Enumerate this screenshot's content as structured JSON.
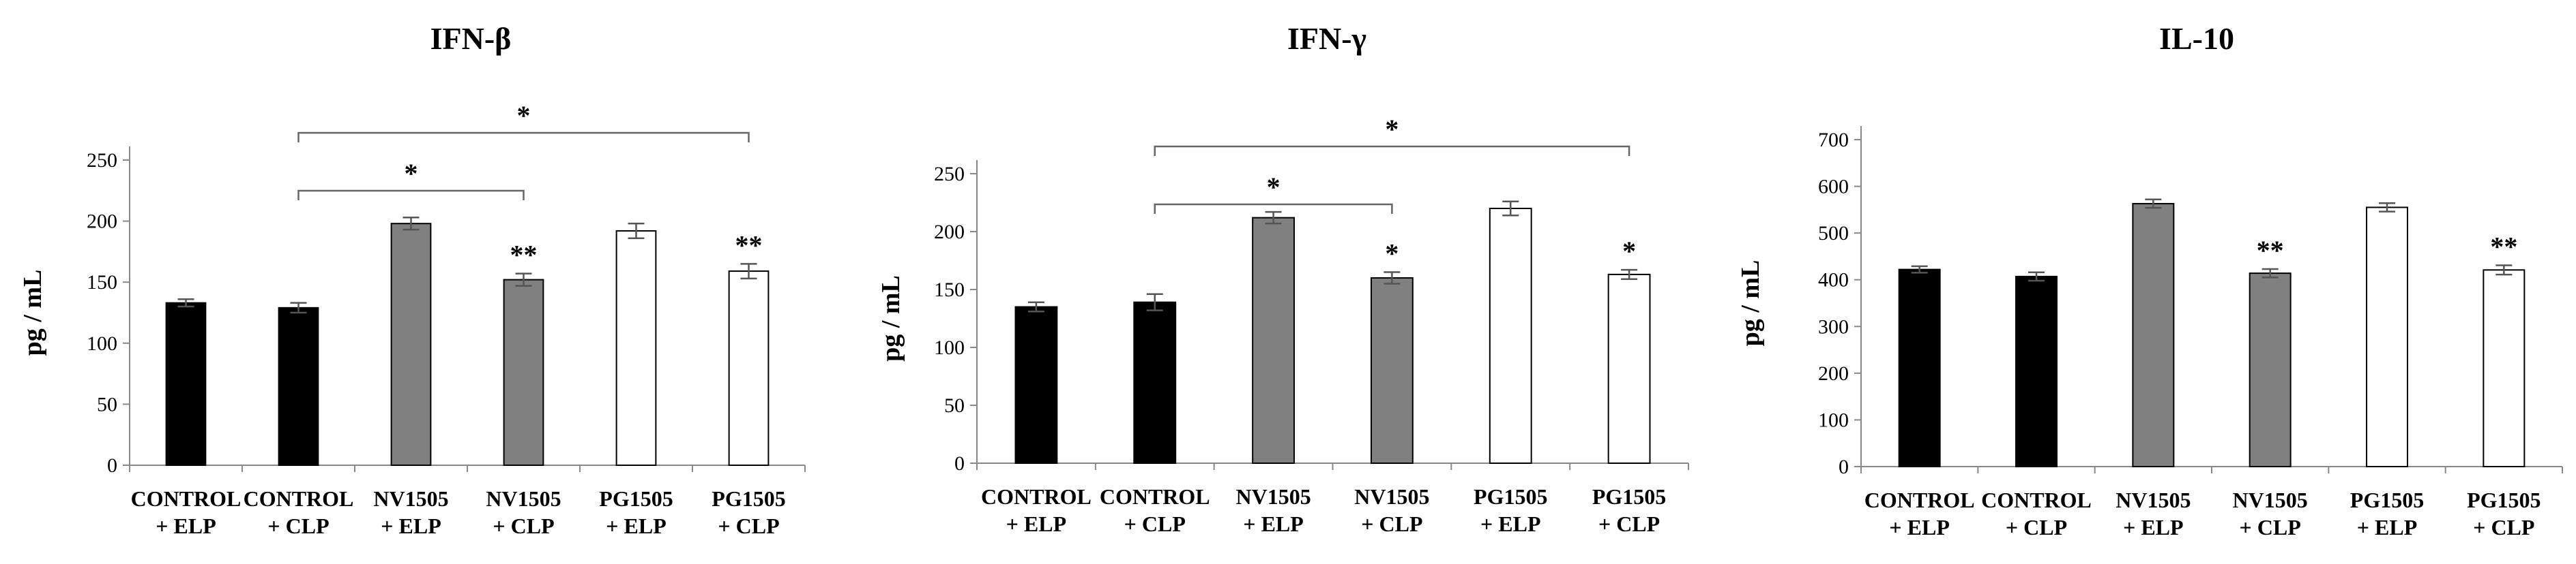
{
  "chart_data": [
    {
      "type": "bar",
      "title": "IFN-β",
      "ylabel": "pg / mL",
      "ylim": [
        0,
        250
      ],
      "yticks": [
        0,
        50,
        100,
        150,
        200,
        250
      ],
      "categories": [
        [
          "CONTROL",
          "+ ELP"
        ],
        [
          "CONTROL",
          "+ CLP"
        ],
        [
          "NV1505",
          "+ ELP"
        ],
        [
          "NV1505",
          "+ CLP"
        ],
        [
          "PG1505",
          "+ ELP"
        ],
        [
          "PG1505",
          "+ CLP"
        ]
      ],
      "values": [
        133,
        129,
        198,
        152,
        192,
        159
      ],
      "errors": [
        3,
        4,
        5,
        5,
        6,
        6
      ],
      "fills": [
        "#000000",
        "#000000",
        "#808080",
        "#808080",
        "#ffffff",
        "#ffffff"
      ],
      "bar_annotations": [
        "",
        "",
        "",
        "**",
        "",
        "**"
      ],
      "brackets": [
        {
          "from": 1,
          "to": 3,
          "label": "*"
        },
        {
          "from": 1,
          "to": 5,
          "label": "*"
        }
      ]
    },
    {
      "type": "bar",
      "title": "IFN-γ",
      "ylabel": "pg / mL",
      "ylim": [
        0,
        250
      ],
      "yticks": [
        0,
        50,
        100,
        150,
        200,
        250
      ],
      "categories": [
        [
          "CONTROL",
          "+ ELP"
        ],
        [
          "CONTROL",
          "+ CLP"
        ],
        [
          "NV1505",
          "+ ELP"
        ],
        [
          "NV1505",
          "+ CLP"
        ],
        [
          "PG1505",
          "+ ELP"
        ],
        [
          "PG1505",
          "+ CLP"
        ]
      ],
      "values": [
        135,
        139,
        212,
        160,
        220,
        163
      ],
      "errors": [
        4,
        7,
        5,
        5,
        6,
        4
      ],
      "fills": [
        "#000000",
        "#000000",
        "#808080",
        "#808080",
        "#ffffff",
        "#ffffff"
      ],
      "bar_annotations": [
        "",
        "",
        "",
        "*",
        "",
        "*"
      ],
      "brackets": [
        {
          "from": 1,
          "to": 3,
          "label": "*"
        },
        {
          "from": 1,
          "to": 5,
          "label": "*"
        }
      ]
    },
    {
      "type": "bar",
      "title": "IL-10",
      "ylabel": "pg / mL",
      "ylim": [
        0,
        700
      ],
      "yticks": [
        0,
        100,
        200,
        300,
        400,
        500,
        600,
        700
      ],
      "categories": [
        [
          "CONTROL",
          "+ ELP"
        ],
        [
          "CONTROL",
          "+ CLP"
        ],
        [
          "NV1505",
          "+ ELP"
        ],
        [
          "NV1505",
          "+ CLP"
        ],
        [
          "PG1505",
          "+ ELP"
        ],
        [
          "PG1505",
          "+ CLP"
        ]
      ],
      "values": [
        422,
        407,
        563,
        414,
        555,
        421
      ],
      "errors": [
        7,
        9,
        9,
        9,
        9,
        10
      ],
      "fills": [
        "#000000",
        "#000000",
        "#808080",
        "#808080",
        "#ffffff",
        "#ffffff"
      ],
      "bar_annotations": [
        "",
        "",
        "",
        "**",
        "",
        "**"
      ],
      "brackets": []
    }
  ]
}
